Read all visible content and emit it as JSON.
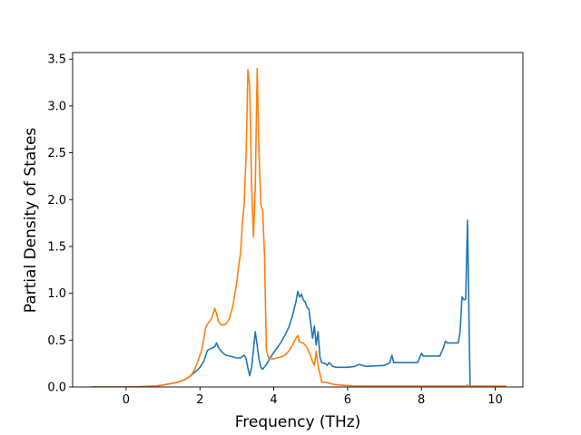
{
  "chart_data": {
    "type": "line",
    "title": "",
    "xlabel": "Frequency (THz)",
    "ylabel": "Partial Density of States",
    "xlim": [
      -1.45,
      10.75
    ],
    "ylim": [
      0.0,
      3.57
    ],
    "xticks": [
      0,
      2,
      4,
      6,
      8,
      10
    ],
    "xtick_labels": [
      "0",
      "2",
      "4",
      "6",
      "8",
      "10"
    ],
    "yticks": [
      0.0,
      0.5,
      1.0,
      1.5,
      2.0,
      2.5,
      3.0,
      3.5
    ],
    "ytick_labels": [
      "0.0",
      "0.5",
      "1.0",
      "1.5",
      "2.0",
      "2.5",
      "3.0",
      "3.5"
    ],
    "grid": false,
    "legend": "none",
    "series": [
      {
        "color": "#1f77b4",
        "points": [
          [
            -0.95,
            0.0
          ],
          [
            0.0,
            0.0
          ],
          [
            0.4,
            0.003
          ],
          [
            0.8,
            0.01
          ],
          [
            1.0,
            0.02
          ],
          [
            1.2,
            0.035
          ],
          [
            1.4,
            0.05
          ],
          [
            1.6,
            0.08
          ],
          [
            1.75,
            0.12
          ],
          [
            1.9,
            0.17
          ],
          [
            2.0,
            0.21
          ],
          [
            2.1,
            0.27
          ],
          [
            2.15,
            0.33
          ],
          [
            2.2,
            0.39
          ],
          [
            2.3,
            0.41
          ],
          [
            2.4,
            0.43
          ],
          [
            2.45,
            0.47
          ],
          [
            2.5,
            0.42
          ],
          [
            2.6,
            0.37
          ],
          [
            2.7,
            0.34
          ],
          [
            2.8,
            0.33
          ],
          [
            2.9,
            0.32
          ],
          [
            3.0,
            0.31
          ],
          [
            3.1,
            0.31
          ],
          [
            3.2,
            0.34
          ],
          [
            3.25,
            0.3
          ],
          [
            3.3,
            0.2
          ],
          [
            3.35,
            0.12
          ],
          [
            3.4,
            0.21
          ],
          [
            3.5,
            0.59
          ],
          [
            3.55,
            0.44
          ],
          [
            3.6,
            0.3
          ],
          [
            3.65,
            0.21
          ],
          [
            3.7,
            0.19
          ],
          [
            3.8,
            0.24
          ],
          [
            3.9,
            0.31
          ],
          [
            4.0,
            0.37
          ],
          [
            4.1,
            0.42
          ],
          [
            4.2,
            0.48
          ],
          [
            4.3,
            0.55
          ],
          [
            4.4,
            0.63
          ],
          [
            4.5,
            0.75
          ],
          [
            4.6,
            0.91
          ],
          [
            4.65,
            1.02
          ],
          [
            4.7,
            0.96
          ],
          [
            4.75,
            0.99
          ],
          [
            4.8,
            0.93
          ],
          [
            4.85,
            0.91
          ],
          [
            4.9,
            0.85
          ],
          [
            4.95,
            0.83
          ],
          [
            5.0,
            0.68
          ],
          [
            5.05,
            0.52
          ],
          [
            5.1,
            0.65
          ],
          [
            5.15,
            0.45
          ],
          [
            5.2,
            0.59
          ],
          [
            5.25,
            0.32
          ],
          [
            5.3,
            0.26
          ],
          [
            5.4,
            0.25
          ],
          [
            5.45,
            0.23
          ],
          [
            5.5,
            0.26
          ],
          [
            5.6,
            0.22
          ],
          [
            5.7,
            0.21
          ],
          [
            6.0,
            0.21
          ],
          [
            6.2,
            0.22
          ],
          [
            6.3,
            0.24
          ],
          [
            6.4,
            0.23
          ],
          [
            6.5,
            0.22
          ],
          [
            7.0,
            0.23
          ],
          [
            7.15,
            0.26
          ],
          [
            7.2,
            0.34
          ],
          [
            7.25,
            0.26
          ],
          [
            7.3,
            0.26
          ],
          [
            7.9,
            0.26
          ],
          [
            8.0,
            0.36
          ],
          [
            8.05,
            0.33
          ],
          [
            8.5,
            0.33
          ],
          [
            8.6,
            0.42
          ],
          [
            8.65,
            0.49
          ],
          [
            8.7,
            0.47
          ],
          [
            9.0,
            0.47
          ],
          [
            9.05,
            0.6
          ],
          [
            9.1,
            0.96
          ],
          [
            9.15,
            0.93
          ],
          [
            9.2,
            0.94
          ],
          [
            9.25,
            1.78
          ],
          [
            9.3,
            0.5
          ],
          [
            9.32,
            0.0
          ],
          [
            10.3,
            0.0
          ]
        ]
      },
      {
        "color": "#ff7f0e",
        "points": [
          [
            -0.95,
            0.0
          ],
          [
            0.0,
            0.0
          ],
          [
            0.4,
            0.004
          ],
          [
            0.8,
            0.012
          ],
          [
            1.0,
            0.02
          ],
          [
            1.2,
            0.035
          ],
          [
            1.4,
            0.05
          ],
          [
            1.6,
            0.08
          ],
          [
            1.75,
            0.12
          ],
          [
            1.85,
            0.18
          ],
          [
            1.95,
            0.28
          ],
          [
            2.05,
            0.4
          ],
          [
            2.1,
            0.5
          ],
          [
            2.15,
            0.63
          ],
          [
            2.2,
            0.67
          ],
          [
            2.3,
            0.72
          ],
          [
            2.35,
            0.77
          ],
          [
            2.4,
            0.84
          ],
          [
            2.45,
            0.78
          ],
          [
            2.5,
            0.7
          ],
          [
            2.55,
            0.67
          ],
          [
            2.6,
            0.66
          ],
          [
            2.7,
            0.67
          ],
          [
            2.8,
            0.73
          ],
          [
            2.9,
            0.88
          ],
          [
            3.0,
            1.13
          ],
          [
            3.05,
            1.3
          ],
          [
            3.1,
            1.43
          ],
          [
            3.15,
            1.75
          ],
          [
            3.2,
            1.95
          ],
          [
            3.25,
            2.5
          ],
          [
            3.3,
            3.39
          ],
          [
            3.35,
            3.2
          ],
          [
            3.4,
            2.14
          ],
          [
            3.45,
            1.6
          ],
          [
            3.5,
            2.15
          ],
          [
            3.55,
            3.4
          ],
          [
            3.6,
            2.52
          ],
          [
            3.65,
            1.95
          ],
          [
            3.7,
            1.87
          ],
          [
            3.75,
            1.4
          ],
          [
            3.8,
            0.4
          ],
          [
            3.85,
            0.32
          ],
          [
            3.9,
            0.3
          ],
          [
            4.0,
            0.3
          ],
          [
            4.1,
            0.31
          ],
          [
            4.2,
            0.32
          ],
          [
            4.3,
            0.34
          ],
          [
            4.4,
            0.38
          ],
          [
            4.5,
            0.44
          ],
          [
            4.6,
            0.52
          ],
          [
            4.65,
            0.55
          ],
          [
            4.7,
            0.48
          ],
          [
            4.8,
            0.47
          ],
          [
            4.9,
            0.42
          ],
          [
            5.0,
            0.33
          ],
          [
            5.05,
            0.27
          ],
          [
            5.1,
            0.23
          ],
          [
            5.15,
            0.38
          ],
          [
            5.2,
            0.22
          ],
          [
            5.25,
            0.14
          ],
          [
            5.3,
            0.05
          ],
          [
            5.4,
            0.05
          ],
          [
            5.6,
            0.03
          ],
          [
            5.8,
            0.02
          ],
          [
            6.2,
            0.01
          ],
          [
            7.0,
            0.01
          ],
          [
            8.0,
            0.01
          ],
          [
            9.2,
            0.01
          ],
          [
            9.25,
            0.02
          ],
          [
            9.3,
            0.01
          ],
          [
            10.3,
            0.01
          ]
        ]
      }
    ]
  }
}
